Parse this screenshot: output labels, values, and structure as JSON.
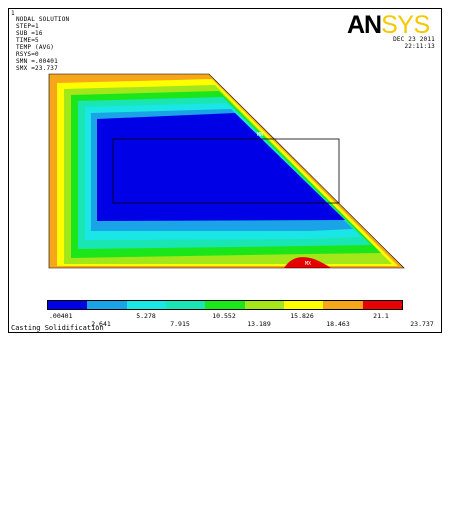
{
  "window": {
    "number": "1",
    "info_lines": [
      "NODAL SOLUTION",
      "STEP=1",
      "SUB =16",
      "TIME=5",
      "TEMP     (AVG)",
      "RSYS=0",
      "SMN =.00401",
      "SMX =23.737"
    ],
    "date": "DEC 23 2011",
    "time": "22:11:13",
    "logo": {
      "an": "AN",
      "sys": "SYS",
      "an_color": "#000000",
      "sys_color": "#f5c800"
    },
    "mn_marker": "MN",
    "mx_marker": "MX",
    "caption": "Casting Solidification"
  },
  "legend": {
    "colors": [
      "#0000e6",
      "#1aa3e6",
      "#1ae6e6",
      "#1ae6b4",
      "#1ae61a",
      "#a3e61a",
      "#ffff00",
      "#f5a61a",
      "#e60000"
    ],
    "labels_top": [
      ".00401",
      "5.278",
      "10.552",
      "15.826",
      "21.1"
    ],
    "labels_bottom": [
      "2.641",
      "7.915",
      "13.189",
      "18.463",
      "23.737"
    ]
  },
  "chart_data": {
    "type": "heatmap",
    "quantity": "TEMP",
    "min": 0.00401,
    "max": 23.737,
    "contour_levels": [
      0.00401,
      2.641,
      5.278,
      7.915,
      10.552,
      13.189,
      15.826,
      18.463,
      21.1,
      23.737
    ]
  }
}
